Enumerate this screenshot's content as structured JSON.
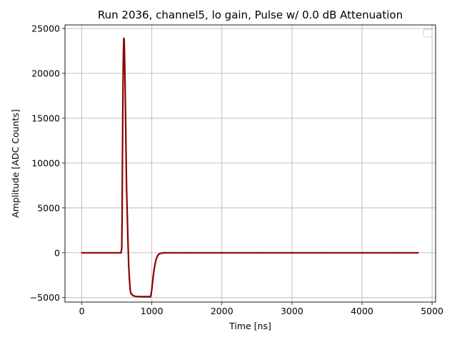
{
  "chart_data": {
    "type": "line",
    "title": "Run 2036, channel5, lo gain, Pulse w/ 0.0 dB Attenuation",
    "xlabel": "Time [ns]",
    "ylabel": "Amplitude [ADC Counts]",
    "xlim": [
      -240,
      5050
    ],
    "ylim": [
      -5500,
      25400
    ],
    "xticks": [
      0,
      1000,
      2000,
      3000,
      4000,
      5000
    ],
    "xtick_labels": [
      "0",
      "1000",
      "2000",
      "3000",
      "4000",
      "5000"
    ],
    "yticks": [
      -5000,
      0,
      5000,
      10000,
      15000,
      20000,
      25000
    ],
    "ytick_labels": [
      "−5000",
      "0",
      "5000",
      "10000",
      "15000",
      "20000",
      "25000"
    ],
    "grid": true,
    "legend": "top-right (empty)",
    "colors": {
      "series": "#8b0000",
      "grid": "#b0b0b0"
    },
    "series": [
      {
        "x": [
          0,
          100,
          200,
          300,
          400,
          500,
          560,
          570,
          575,
          580,
          585,
          590,
          595,
          600,
          605,
          610,
          615,
          620,
          625,
          630,
          635,
          640,
          650,
          660,
          670,
          680,
          690,
          700,
          710,
          720,
          740,
          760,
          800,
          850,
          900,
          950,
          980,
          990,
          1000,
          1010,
          1020,
          1030,
          1040,
          1050,
          1060,
          1070,
          1080,
          1090,
          1100,
          1120,
          1140,
          1160,
          1200,
          1300,
          1500,
          2000,
          2500,
          3000,
          3500,
          4000,
          4500,
          4800
        ],
        "y": [
          0,
          0,
          0,
          0,
          0,
          0,
          0,
          500,
          4000,
          9500,
          15000,
          20000,
          22500,
          23900,
          23800,
          22000,
          20000,
          17500,
          15000,
          12000,
          9500,
          7000,
          4000,
          1000,
          -1500,
          -3000,
          -4000,
          -4500,
          -4600,
          -4700,
          -4800,
          -4850,
          -4880,
          -4900,
          -4900,
          -4900,
          -4900,
          -4600,
          -4000,
          -3300,
          -2600,
          -2000,
          -1500,
          -1100,
          -800,
          -550,
          -380,
          -250,
          -150,
          -80,
          -40,
          -10,
          0,
          0,
          0,
          0,
          0,
          0,
          0,
          0,
          0,
          0
        ]
      }
    ]
  }
}
